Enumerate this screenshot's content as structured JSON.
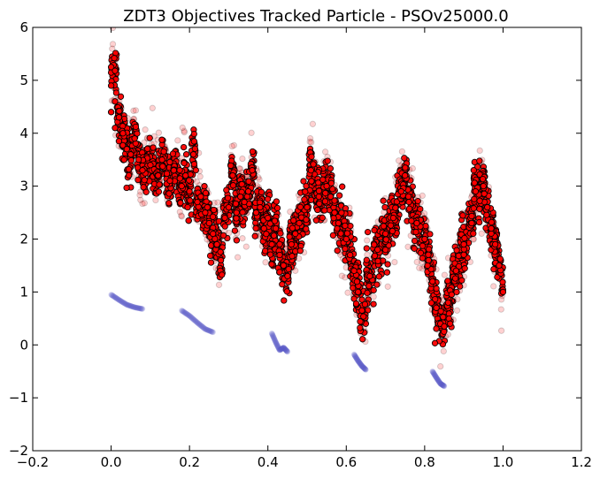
{
  "chart_data": {
    "type": "scatter",
    "title": "ZDT3 Objectives Tracked Particle - PSOv25000.0",
    "xlabel": "",
    "ylabel": "",
    "xlim": [
      -0.2,
      1.2
    ],
    "ylim": [
      -2,
      6
    ],
    "xticks": [
      "−0.2",
      "0.0",
      "0.2",
      "0.4",
      "0.6",
      "0.8",
      "1.0",
      "1.2"
    ],
    "yticks": [
      "−2",
      "−1",
      "0",
      "1",
      "2",
      "3",
      "4",
      "5",
      "6"
    ],
    "grid": false,
    "legend": "none",
    "series": [
      {
        "role": "tracked-particle",
        "color": "#ff0000",
        "edge_color": "#000000",
        "points": [
          [
            0.0,
            5.25
          ],
          [
            0.01,
            5.18
          ],
          [
            0.0,
            4.9
          ],
          [
            0.01,
            4.6
          ],
          [
            0.0,
            4.4
          ],
          [
            0.02,
            4.3
          ],
          [
            0.01,
            4.1
          ],
          [
            0.03,
            4.0
          ],
          [
            0.02,
            3.85
          ],
          [
            0.04,
            3.7
          ],
          [
            0.05,
            3.6
          ],
          [
            0.06,
            3.9
          ],
          [
            0.07,
            3.5
          ],
          [
            0.08,
            3.3
          ],
          [
            0.1,
            3.4
          ],
          [
            0.12,
            3.2
          ],
          [
            0.13,
            3.5
          ],
          [
            0.15,
            3.1
          ],
          [
            0.16,
            3.3
          ],
          [
            0.18,
            3.0
          ],
          [
            0.19,
            3.2
          ],
          [
            0.2,
            2.9
          ],
          [
            0.21,
            3.6
          ],
          [
            0.22,
            2.7
          ],
          [
            0.24,
            2.5
          ],
          [
            0.25,
            2.3
          ],
          [
            0.26,
            2.1
          ],
          [
            0.27,
            1.9
          ],
          [
            0.28,
            1.6
          ],
          [
            0.29,
            2.4
          ],
          [
            0.3,
            2.6
          ],
          [
            0.31,
            3.2
          ],
          [
            0.32,
            2.5
          ],
          [
            0.33,
            2.8
          ],
          [
            0.34,
            2.7
          ],
          [
            0.35,
            2.9
          ],
          [
            0.36,
            3.3
          ],
          [
            0.37,
            2.5
          ],
          [
            0.38,
            2.6
          ],
          [
            0.39,
            2.2
          ],
          [
            0.4,
            2.4
          ],
          [
            0.41,
            1.9
          ],
          [
            0.42,
            2.2
          ],
          [
            0.43,
            1.7
          ],
          [
            0.44,
            1.5
          ],
          [
            0.45,
            1.3
          ],
          [
            0.46,
            1.9
          ],
          [
            0.47,
            2.1
          ],
          [
            0.48,
            2.3
          ],
          [
            0.5,
            2.6
          ],
          [
            0.51,
            3.3
          ],
          [
            0.53,
            2.8
          ],
          [
            0.55,
            3.0
          ],
          [
            0.56,
            2.8
          ],
          [
            0.57,
            2.5
          ],
          [
            0.58,
            2.3
          ],
          [
            0.6,
            2.0
          ],
          [
            0.61,
            1.7
          ],
          [
            0.62,
            1.4
          ],
          [
            0.63,
            1.0
          ],
          [
            0.64,
            0.65
          ],
          [
            0.66,
            1.3
          ],
          [
            0.68,
            1.8
          ],
          [
            0.7,
            2.1
          ],
          [
            0.72,
            2.4
          ],
          [
            0.74,
            2.9
          ],
          [
            0.75,
            3.2
          ],
          [
            0.76,
            2.7
          ],
          [
            0.78,
            2.3
          ],
          [
            0.8,
            2.0
          ],
          [
            0.81,
            1.6
          ],
          [
            0.82,
            1.2
          ],
          [
            0.83,
            0.7
          ],
          [
            0.84,
            0.4
          ],
          [
            0.85,
            0.35
          ],
          [
            0.86,
            0.8
          ],
          [
            0.88,
            1.4
          ],
          [
            0.9,
            1.9
          ],
          [
            0.92,
            2.3
          ],
          [
            0.93,
            2.9
          ],
          [
            0.95,
            3.0
          ],
          [
            0.96,
            2.6
          ],
          [
            0.97,
            2.2
          ],
          [
            0.98,
            1.9
          ],
          [
            0.99,
            1.5
          ],
          [
            1.0,
            1.0
          ]
        ]
      },
      {
        "role": "pareto-front",
        "color": "#5b5bc8",
        "segments": [
          [
            [
              0.0,
              0.95
            ],
            [
              0.02,
              0.85
            ],
            [
              0.04,
              0.76
            ],
            [
              0.06,
              0.71
            ],
            [
              0.08,
              0.68
            ]
          ],
          [
            [
              0.18,
              0.65
            ],
            [
              0.2,
              0.55
            ],
            [
              0.22,
              0.42
            ],
            [
              0.24,
              0.3
            ],
            [
              0.26,
              0.24
            ]
          ],
          [
            [
              0.41,
              0.22
            ],
            [
              0.42,
              0.05
            ],
            [
              0.43,
              -0.1
            ],
            [
              0.44,
              -0.05
            ],
            [
              0.45,
              -0.13
            ]
          ],
          [
            [
              0.62,
              -0.18
            ],
            [
              0.63,
              -0.3
            ],
            [
              0.64,
              -0.4
            ],
            [
              0.65,
              -0.47
            ]
          ],
          [
            [
              0.82,
              -0.5
            ],
            [
              0.83,
              -0.62
            ],
            [
              0.84,
              -0.73
            ],
            [
              0.85,
              -0.78
            ]
          ]
        ]
      }
    ]
  }
}
